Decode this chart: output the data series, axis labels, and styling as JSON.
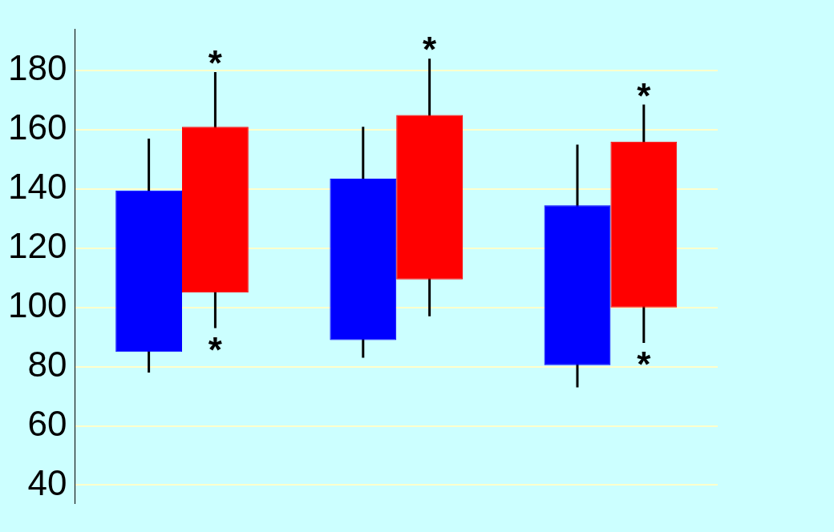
{
  "chart_data": {
    "type": "candlestick",
    "categories": [
      null,
      null,
      null
    ],
    "series": [
      {
        "color": "#0000ff",
        "ohlc": [
          [
            85,
            157,
            78,
            139.5
          ],
          [
            89,
            161,
            83,
            143.5
          ],
          [
            80.5,
            155,
            73,
            134.5
          ]
        ]
      },
      {
        "color": "#ff0000",
        "ohlc": [
          [
            105,
            179.5,
            93,
            161
          ],
          [
            109.5,
            184,
            97,
            165
          ],
          [
            100,
            168.5,
            88,
            156
          ]
        ]
      }
    ],
    "ylim": [
      34,
      194
    ],
    "yticks": [
      40,
      60,
      80,
      100,
      120,
      140,
      160,
      180
    ],
    "grid": true,
    "annotations": [
      {
        "text": "*",
        "y": 179.5
      },
      {
        "text": "*",
        "y": 93
      },
      {
        "text": "*",
        "y": 184
      },
      {
        "text": "*",
        "y": 168.5
      },
      {
        "text": "*",
        "y": 88
      }
    ]
  }
}
